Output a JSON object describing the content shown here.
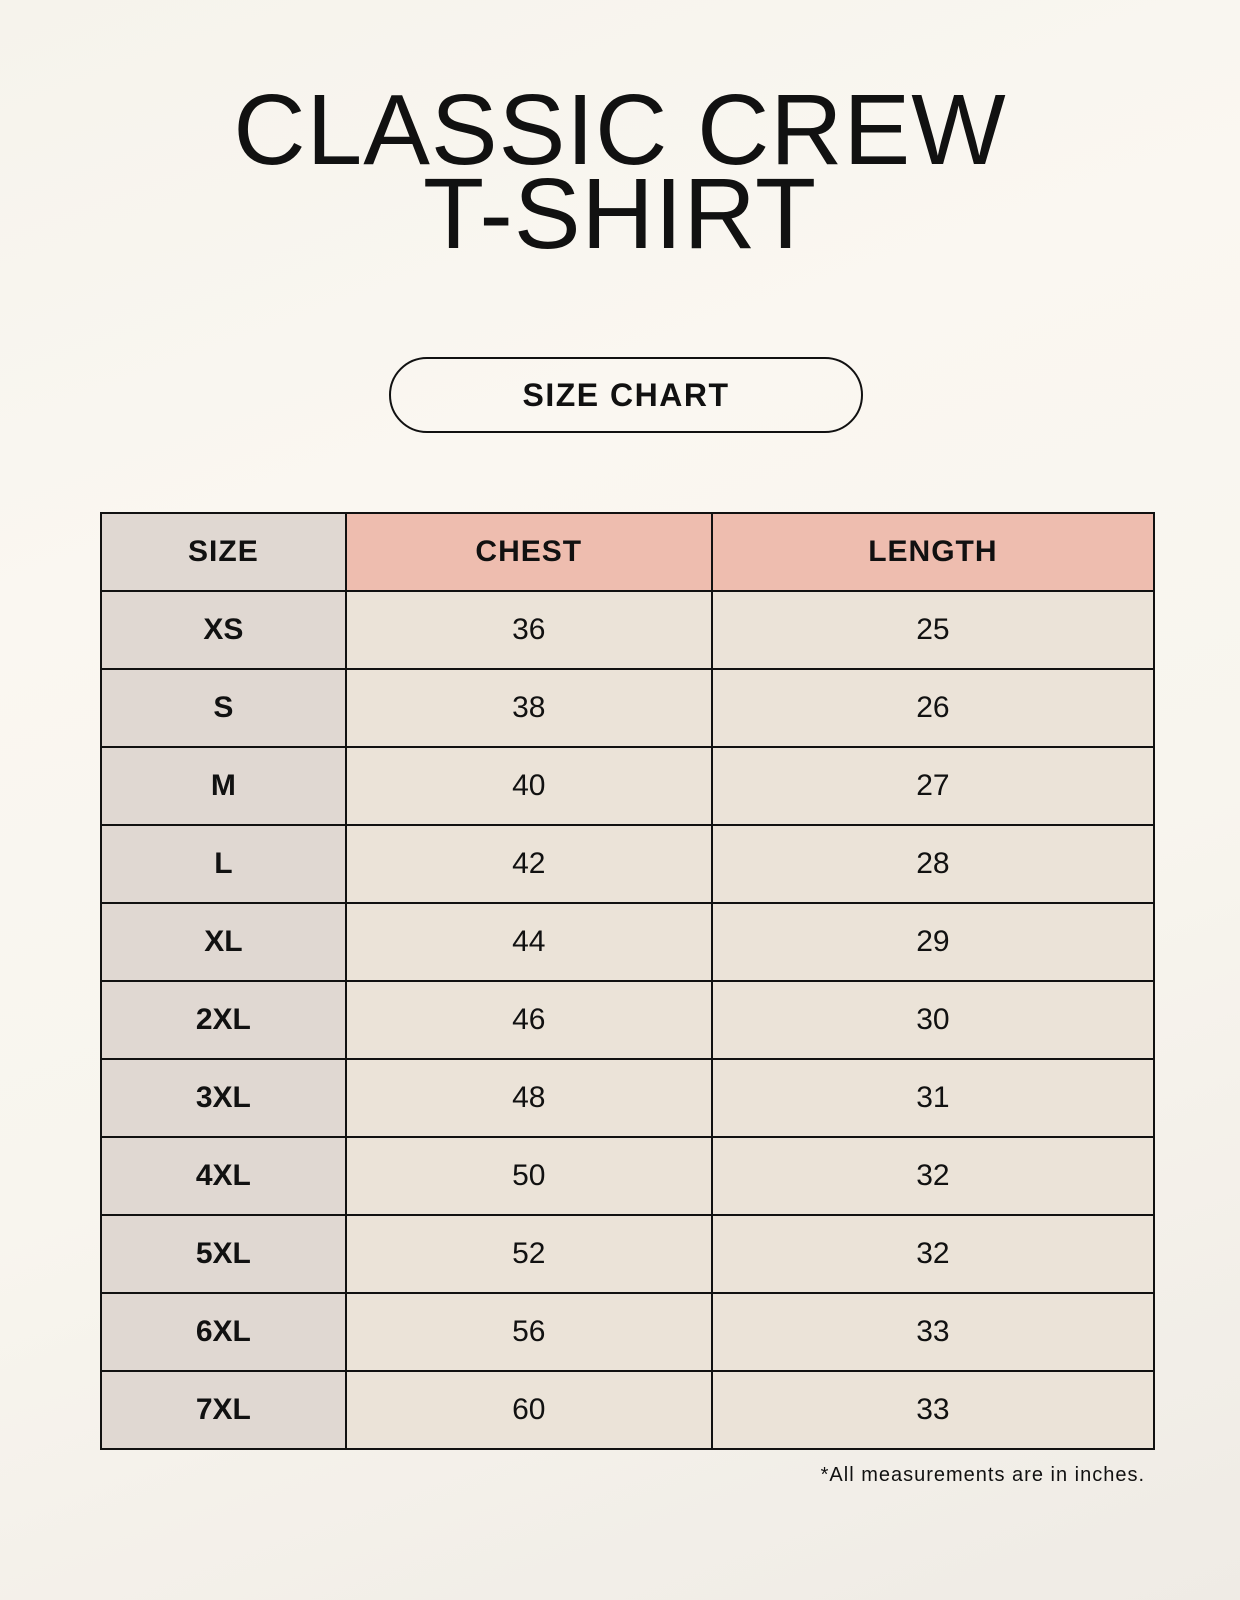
{
  "title_line1": "CLASSIC CREW",
  "title_line2": "T-SHIRT",
  "badge": "SIZE CHART",
  "table": {
    "headers": [
      "SIZE",
      "CHEST",
      "LENGTH"
    ],
    "rows": [
      [
        "XS",
        "36",
        "25"
      ],
      [
        "S",
        "38",
        "26"
      ],
      [
        "M",
        "40",
        "27"
      ],
      [
        "L",
        "42",
        "28"
      ],
      [
        "XL",
        "44",
        "29"
      ],
      [
        "2XL",
        "46",
        "30"
      ],
      [
        "3XL",
        "48",
        "31"
      ],
      [
        "4XL",
        "50",
        "32"
      ],
      [
        "5XL",
        "52",
        "32"
      ],
      [
        "6XL",
        "56",
        "33"
      ],
      [
        "7XL",
        "60",
        "33"
      ]
    ]
  },
  "footnote": "*All measurements are in inches.",
  "colors": {
    "size_column": "#e0d8d2",
    "measure_header": "#eebdaf",
    "cell": "#ebe3d8"
  }
}
